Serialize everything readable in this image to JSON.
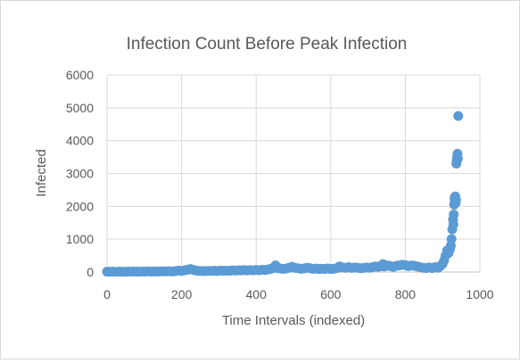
{
  "chart_data": {
    "type": "scatter",
    "title": "Infection Count Before Peak Infection",
    "xlabel": "Time Intervals (indexed)",
    "ylabel": "Infected",
    "xlim": [
      0,
      1000
    ],
    "ylim": [
      0,
      6000
    ],
    "x_ticks": [
      "0",
      "200",
      "400",
      "600",
      "800",
      "1000"
    ],
    "y_ticks": [
      "0",
      "1000",
      "2000",
      "3000",
      "4000",
      "5000",
      "6000"
    ],
    "grid": true,
    "legend": "none",
    "marker_color": "#5b9bd5",
    "points": [
      [
        0,
        10
      ],
      [
        8,
        8
      ],
      [
        16,
        12
      ],
      [
        24,
        6
      ],
      [
        32,
        15
      ],
      [
        40,
        10
      ],
      [
        48,
        8
      ],
      [
        56,
        14
      ],
      [
        64,
        10
      ],
      [
        72,
        18
      ],
      [
        80,
        12
      ],
      [
        88,
        9
      ],
      [
        96,
        16
      ],
      [
        104,
        14
      ],
      [
        112,
        20
      ],
      [
        120,
        12
      ],
      [
        128,
        18
      ],
      [
        136,
        15
      ],
      [
        144,
        22
      ],
      [
        152,
        16
      ],
      [
        160,
        20
      ],
      [
        168,
        25
      ],
      [
        176,
        18
      ],
      [
        184,
        30
      ],
      [
        192,
        45
      ],
      [
        200,
        35
      ],
      [
        208,
        50
      ],
      [
        216,
        70
      ],
      [
        224,
        90
      ],
      [
        232,
        60
      ],
      [
        240,
        40
      ],
      [
        248,
        35
      ],
      [
        256,
        30
      ],
      [
        264,
        28
      ],
      [
        272,
        35
      ],
      [
        280,
        30
      ],
      [
        288,
        40
      ],
      [
        296,
        32
      ],
      [
        304,
        45
      ],
      [
        312,
        38
      ],
      [
        320,
        42
      ],
      [
        328,
        36
      ],
      [
        336,
        50
      ],
      [
        344,
        45
      ],
      [
        352,
        55
      ],
      [
        360,
        48
      ],
      [
        368,
        60
      ],
      [
        376,
        52
      ],
      [
        384,
        58
      ],
      [
        392,
        50
      ],
      [
        400,
        65
      ],
      [
        408,
        55
      ],
      [
        416,
        70
      ],
      [
        424,
        60
      ],
      [
        432,
        80
      ],
      [
        440,
        100
      ],
      [
        448,
        150
      ],
      [
        452,
        200
      ],
      [
        456,
        120
      ],
      [
        464,
        110
      ],
      [
        472,
        95
      ],
      [
        480,
        105
      ],
      [
        488,
        130
      ],
      [
        496,
        160
      ],
      [
        504,
        125
      ],
      [
        512,
        115
      ],
      [
        520,
        100
      ],
      [
        528,
        110
      ],
      [
        536,
        130
      ],
      [
        544,
        120
      ],
      [
        552,
        95
      ],
      [
        560,
        105
      ],
      [
        568,
        90
      ],
      [
        576,
        100
      ],
      [
        584,
        95
      ],
      [
        592,
        110
      ],
      [
        600,
        90
      ],
      [
        608,
        100
      ],
      [
        616,
        120
      ],
      [
        624,
        170
      ],
      [
        632,
        140
      ],
      [
        640,
        130
      ],
      [
        648,
        150
      ],
      [
        656,
        125
      ],
      [
        664,
        140
      ],
      [
        672,
        130
      ],
      [
        680,
        115
      ],
      [
        688,
        125
      ],
      [
        696,
        140
      ],
      [
        704,
        130
      ],
      [
        712,
        150
      ],
      [
        720,
        170
      ],
      [
        728,
        160
      ],
      [
        736,
        180
      ],
      [
        740,
        240
      ],
      [
        744,
        170
      ],
      [
        752,
        200
      ],
      [
        760,
        180
      ],
      [
        768,
        160
      ],
      [
        776,
        190
      ],
      [
        784,
        200
      ],
      [
        792,
        220
      ],
      [
        800,
        210
      ],
      [
        808,
        180
      ],
      [
        816,
        200
      ],
      [
        824,
        190
      ],
      [
        832,
        170
      ],
      [
        840,
        150
      ],
      [
        848,
        130
      ],
      [
        856,
        120
      ],
      [
        864,
        140
      ],
      [
        872,
        120
      ],
      [
        880,
        150
      ],
      [
        888,
        130
      ],
      [
        894,
        180
      ],
      [
        900,
        250
      ],
      [
        904,
        350
      ],
      [
        908,
        500
      ],
      [
        912,
        650
      ],
      [
        916,
        580
      ],
      [
        920,
        700
      ],
      [
        922,
        800
      ],
      [
        924,
        1000
      ],
      [
        926,
        1300
      ],
      [
        928,
        1600
      ],
      [
        929,
        1450
      ],
      [
        930,
        1750
      ],
      [
        931,
        2050
      ],
      [
        932,
        2250
      ],
      [
        933,
        2150
      ],
      [
        934,
        2300
      ],
      [
        935,
        2100
      ],
      [
        936,
        2200
      ],
      [
        937,
        3300
      ],
      [
        938,
        3400
      ],
      [
        939,
        3500
      ],
      [
        940,
        3600
      ],
      [
        941,
        3450
      ],
      [
        942,
        4750
      ]
    ]
  }
}
